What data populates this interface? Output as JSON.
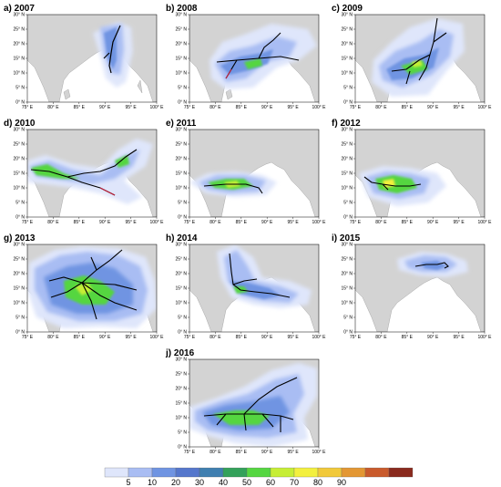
{
  "colorbar": {
    "labels": [
      "5",
      "10",
      "20",
      "30",
      "40",
      "50",
      "60",
      "70",
      "80",
      "90"
    ],
    "colors": [
      "#dfe6fb",
      "#a9bdf3",
      "#6f94e2",
      "#5577cc",
      "#3f7fb0",
      "#33a15a",
      "#55d641",
      "#c6ee35",
      "#f3f03e",
      "#f1c93a",
      "#e39733",
      "#c95a2c",
      "#8a2a1e"
    ]
  },
  "panels": [
    {
      "id": "a",
      "title": "a) 2007"
    },
    {
      "id": "b",
      "title": "b) 2008"
    },
    {
      "id": "c",
      "title": "c) 2009"
    },
    {
      "id": "d",
      "title": "d) 2010"
    },
    {
      "id": "e",
      "title": "e) 2011"
    },
    {
      "id": "f",
      "title": "f) 2012"
    },
    {
      "id": "g",
      "title": "g) 2013"
    },
    {
      "id": "h",
      "title": "h) 2014"
    },
    {
      "id": "i",
      "title": "i) 2015"
    },
    {
      "id": "j",
      "title": "j) 2016"
    }
  ],
  "axes": {
    "lon_labels": [
      "75° E",
      "80° E",
      "85° E",
      "90° E",
      "95° E",
      "100° E"
    ],
    "lat_labels": [
      "0° N",
      "5° N",
      "10° N",
      "15° N",
      "20° N",
      "25° N",
      "30° N"
    ],
    "lon_values": [
      75,
      80,
      85,
      90,
      95,
      100
    ],
    "lat_values": [
      0,
      5,
      10,
      15,
      20,
      25,
      30
    ],
    "lon_range": [
      75,
      100
    ],
    "lat_range": [
      0,
      30
    ]
  }
}
